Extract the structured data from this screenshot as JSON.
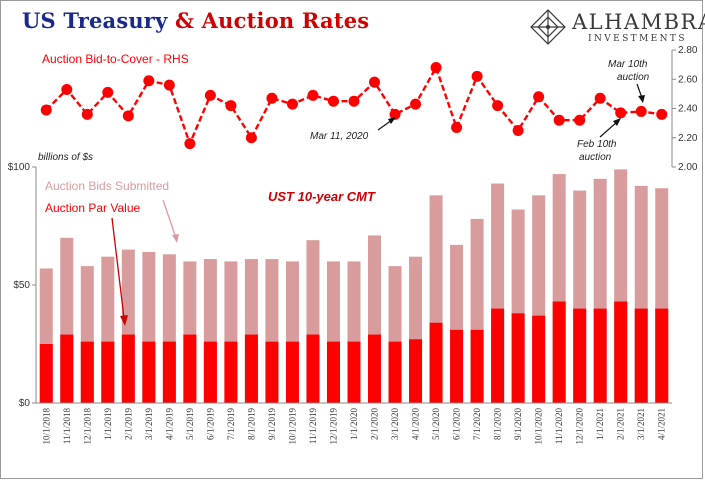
{
  "header": {
    "title_part1": "US Treasury",
    "title_part2": "& Auction Rates",
    "logo_name": "ALHAMBRA",
    "logo_sub": "INVESTMENTS"
  },
  "colors": {
    "bids_submitted": "#d99c9c",
    "par_value": "#ff0000",
    "bid_to_cover": "#ff0000",
    "title_blue": "#1a2a8a",
    "title_red": "#d10000"
  },
  "chart_data": {
    "type": "bar",
    "categories": [
      "10/1/2018",
      "11/1/2018",
      "12/1/2018",
      "1/1/2019",
      "2/1/2019",
      "3/1/2019",
      "4/1/2019",
      "5/1/2019",
      "6/1/2019",
      "7/1/2019",
      "8/1/2019",
      "9/1/2019",
      "10/1/2019",
      "11/1/2019",
      "12/1/2019",
      "1/1/2020",
      "2/1/2020",
      "3/1/2020",
      "4/1/2020",
      "5/1/2020",
      "6/1/2020",
      "7/1/2020",
      "8/1/2020",
      "9/1/2020",
      "10/1/2020",
      "11/1/2020",
      "12/1/2020",
      "1/1/2021",
      "2/1/2021",
      "3/1/2021",
      "4/1/2021"
    ],
    "x_tick_labels": [
      "10/1/2018",
      "11/1/2018",
      "12/1/2018",
      "1/1/2019",
      "2/1/2019",
      "3/1/2019",
      "4/1/2019",
      "5/1/2019",
      "6/1/2019",
      "7/1/2019",
      "8/1/2019",
      "9/1/2019",
      "10/1/2019",
      "11/1/2019",
      "12/1/2019",
      "1/1/2020",
      "2/1/2020",
      "3/1/2020",
      "4/1/2020",
      "5/1/2020",
      "6/1/2020",
      "7/1/2020",
      "8/1/2020",
      "9/1/2020",
      "10/1/2020",
      "11/1/2020",
      "12/1/2020",
      "1/1/2021",
      "2/1/2021",
      "3/1/2021",
      "4/1/2021"
    ],
    "x_tick_positions": [
      0,
      2,
      4,
      6,
      8,
      10,
      12,
      14,
      16,
      18,
      20,
      22,
      24,
      26,
      28,
      30,
      32,
      34,
      36,
      38,
      40,
      42,
      44,
      46,
      48,
      50,
      52,
      54,
      56,
      58,
      60
    ],
    "bars": {
      "name": "Auction Bids Submitted",
      "series": [
        {
          "name": "Auction Bids Submitted",
          "values": [
            57,
            70,
            58,
            62,
            65,
            64,
            63,
            60,
            61,
            60,
            61,
            61,
            60,
            69,
            60,
            60,
            71,
            58,
            62,
            88,
            67,
            78,
            93,
            82,
            88,
            97,
            90,
            95,
            99,
            92,
            91
          ]
        },
        {
          "name": "Auction Par Value",
          "values": [
            25,
            29,
            26,
            26,
            29,
            26,
            26,
            29,
            26,
            26,
            29,
            26,
            26,
            29,
            26,
            26,
            29,
            26,
            27,
            34,
            31,
            31,
            40,
            38,
            37,
            43,
            40,
            40,
            43,
            40,
            40
          ]
        }
      ]
    },
    "line": {
      "name": "Auction Bid-to-Cover - RHS",
      "values": [
        2.39,
        2.53,
        2.36,
        2.51,
        2.35,
        2.59,
        2.56,
        2.16,
        2.49,
        2.42,
        2.2,
        2.47,
        2.43,
        2.49,
        2.45,
        2.45,
        2.58,
        2.36,
        2.43,
        2.68,
        2.27,
        2.62,
        2.42,
        2.25,
        2.48,
        2.32,
        2.32,
        2.47,
        2.37,
        2.38,
        2.36
      ]
    },
    "y_left": {
      "label": "billions of $s",
      "ticks": [
        0,
        50,
        100
      ],
      "tick_labels": [
        "$0",
        "$50",
        "$100"
      ],
      "range": [
        0,
        100
      ]
    },
    "y_right": {
      "ticks": [
        2.0,
        2.2,
        2.4,
        2.6,
        2.8
      ],
      "tick_labels": [
        "2.00",
        "2.20",
        "2.40",
        "2.60",
        "2.80"
      ],
      "range": [
        2.0,
        2.8
      ]
    },
    "legend": {
      "bid_to_cover": "Auction Bid-to-Cover - RHS",
      "bids_submitted": "Auction Bids Submitted",
      "par_value": "Auction Par Value"
    },
    "annotations": [
      {
        "text": "UST 10-year CMT",
        "target_index": null
      },
      {
        "text": "Mar 11, 2020",
        "target_index": 17
      },
      {
        "text": "Mar 10th auction",
        "target_index": 29
      },
      {
        "text": "Feb 10th auction",
        "target_index": 28
      }
    ]
  }
}
